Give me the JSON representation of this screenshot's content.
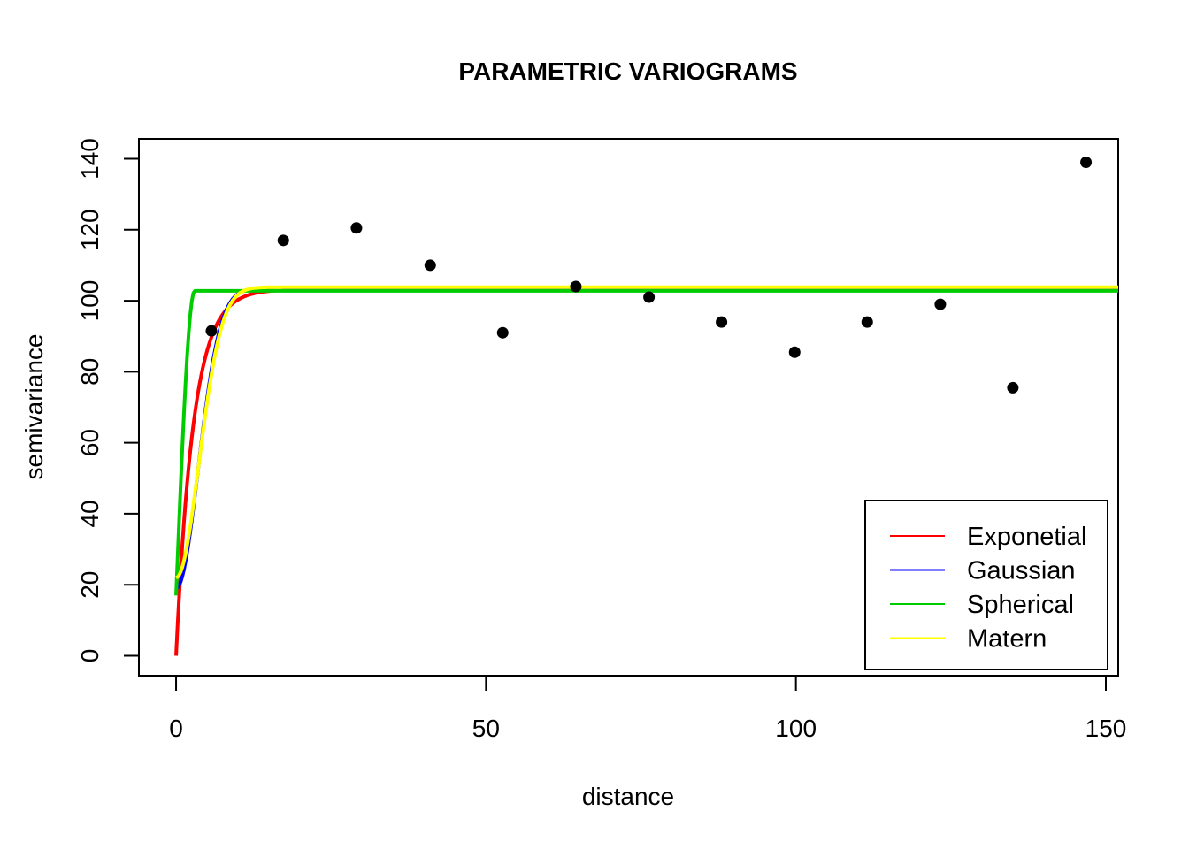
{
  "chart_data": {
    "type": "scatter",
    "title": "PARAMETRIC VARIOGRAMS",
    "xlabel": "distance",
    "ylabel": "semivariance",
    "xlim": [
      -6,
      152
    ],
    "ylim": [
      -5.6,
      145.6
    ],
    "x_ticks": [
      0,
      50,
      100,
      150
    ],
    "y_ticks": [
      0,
      20,
      40,
      60,
      80,
      100,
      120,
      140
    ],
    "grid": false,
    "legend_position": "bottom-right",
    "points": {
      "color": "#000000",
      "x": [
        5.7,
        17.3,
        29.1,
        41.0,
        52.7,
        64.5,
        76.3,
        88.0,
        99.8,
        111.5,
        123.3,
        135.0,
        146.8
      ],
      "y": [
        91.5,
        117.0,
        120.5,
        110.0,
        91.0,
        104.0,
        101.0,
        94.0,
        85.5,
        94.0,
        99.0,
        75.5,
        139.0
      ]
    },
    "series": [
      {
        "name": "Exponetial",
        "color": "#ff0000",
        "model": "exponential",
        "nugget": 0,
        "sill": 103.2,
        "range": 2.8,
        "x_max": 152
      },
      {
        "name": "Gaussian",
        "color": "#0000ff",
        "model": "gaussian",
        "nugget": 19,
        "sill": 103.5,
        "range": 5.0,
        "x_max": 152
      },
      {
        "name": "Spherical",
        "color": "#00cc00",
        "model": "spherical",
        "nugget": 17,
        "sill": 102.8,
        "range": 3.0,
        "x_max": 152
      },
      {
        "name": "Matern",
        "color": "#ffff00",
        "model": "gaussian",
        "nugget": 22,
        "sill": 103.8,
        "range": 5.2,
        "x_max": 152
      }
    ]
  }
}
